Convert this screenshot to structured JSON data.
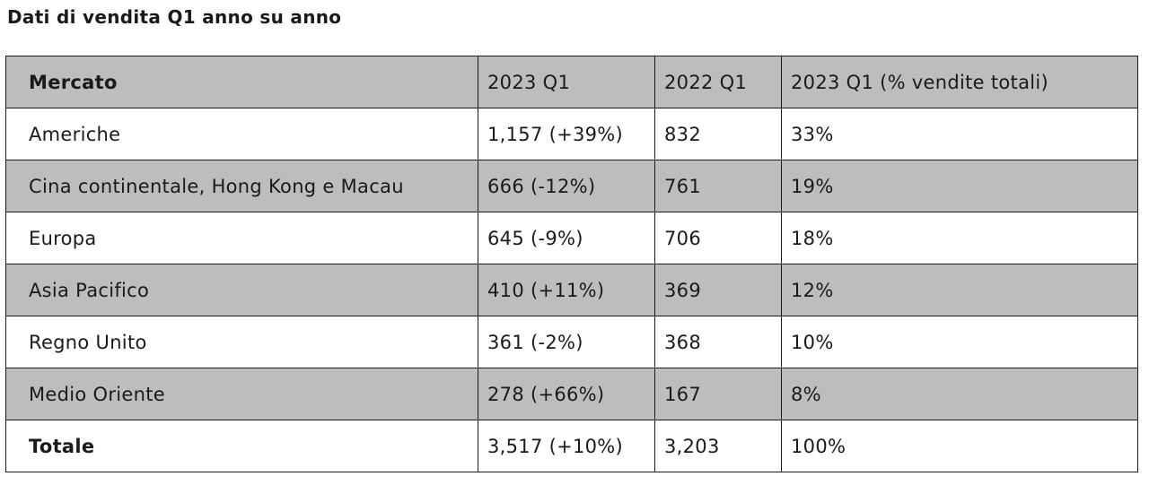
{
  "title": "Dati di vendita Q1 anno su anno",
  "table": {
    "headers": [
      "Mercato",
      "2023 Q1",
      "2022 Q1",
      "2023 Q1 (% vendite totali)"
    ],
    "rows": [
      [
        "Americhe",
        "1,157 (+39%)",
        "832",
        "33%"
      ],
      [
        "Cina continentale, Hong Kong e Macau",
        "666 (-12%)",
        "761",
        "19%"
      ],
      [
        "Europa",
        "645 (-9%)",
        "706",
        "18%"
      ],
      [
        "Asia Pacifico",
        "410 (+11%)",
        "369",
        "12%"
      ],
      [
        "Regno Unito",
        "361 (-2%)",
        "368",
        "10%"
      ],
      [
        "Medio Oriente",
        "278 (+66%)",
        "167",
        "8%"
      ],
      [
        "Totale",
        "3,517 (+10%)",
        "3,203",
        "100%"
      ]
    ]
  },
  "colors": {
    "shade": "#bdbdbd",
    "border": "#1a1a1a",
    "text": "#1a1a1a"
  }
}
